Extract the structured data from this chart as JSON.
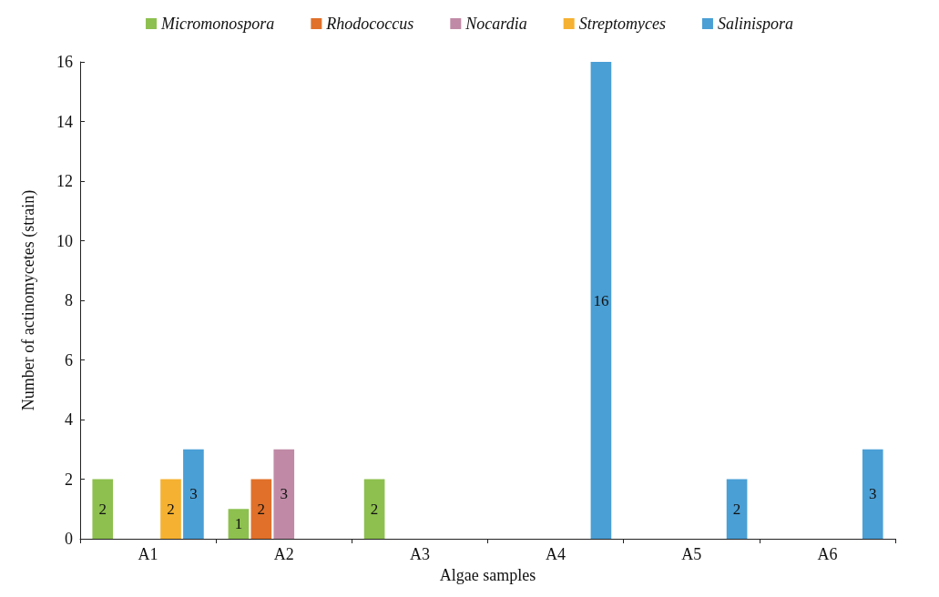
{
  "chart_data": {
    "type": "bar",
    "xlabel": "Algae samples",
    "ylabel": "Number of actinomycetes (strain)",
    "categories": [
      "A1",
      "A2",
      "A3",
      "A4",
      "A5",
      "A6"
    ],
    "series": [
      {
        "name": "Micromonospora",
        "color": "#8dc04f",
        "values": [
          2,
          1,
          2,
          0,
          0,
          0
        ],
        "value_labels": [
          "2",
          "1",
          "2",
          null,
          null,
          null
        ]
      },
      {
        "name": "Rhodococcus",
        "color": "#e0702a",
        "values": [
          0,
          2,
          0,
          0,
          0,
          0
        ],
        "value_labels": [
          null,
          "2",
          null,
          null,
          null,
          null
        ]
      },
      {
        "name": "Nocardia",
        "color": "#c08aa6",
        "values": [
          0,
          3,
          0,
          0,
          0,
          0
        ],
        "value_labels": [
          null,
          "3",
          null,
          null,
          null,
          null
        ]
      },
      {
        "name": "Streptomyces",
        "color": "#f5b131",
        "values": [
          2,
          0,
          0,
          0,
          0,
          0
        ],
        "value_labels": [
          "2",
          null,
          null,
          null,
          null,
          null
        ]
      },
      {
        "name": "Salinispora",
        "color": "#4a9fd5",
        "values": [
          3,
          0,
          0,
          16,
          2,
          3
        ],
        "value_labels": [
          "3",
          null,
          null,
          "16",
          "2",
          "3"
        ]
      }
    ],
    "ylim": [
      0,
      16
    ],
    "yticks": [
      0,
      2,
      4,
      6,
      8,
      10,
      12,
      14,
      16
    ],
    "grid": false,
    "legend": "top"
  }
}
